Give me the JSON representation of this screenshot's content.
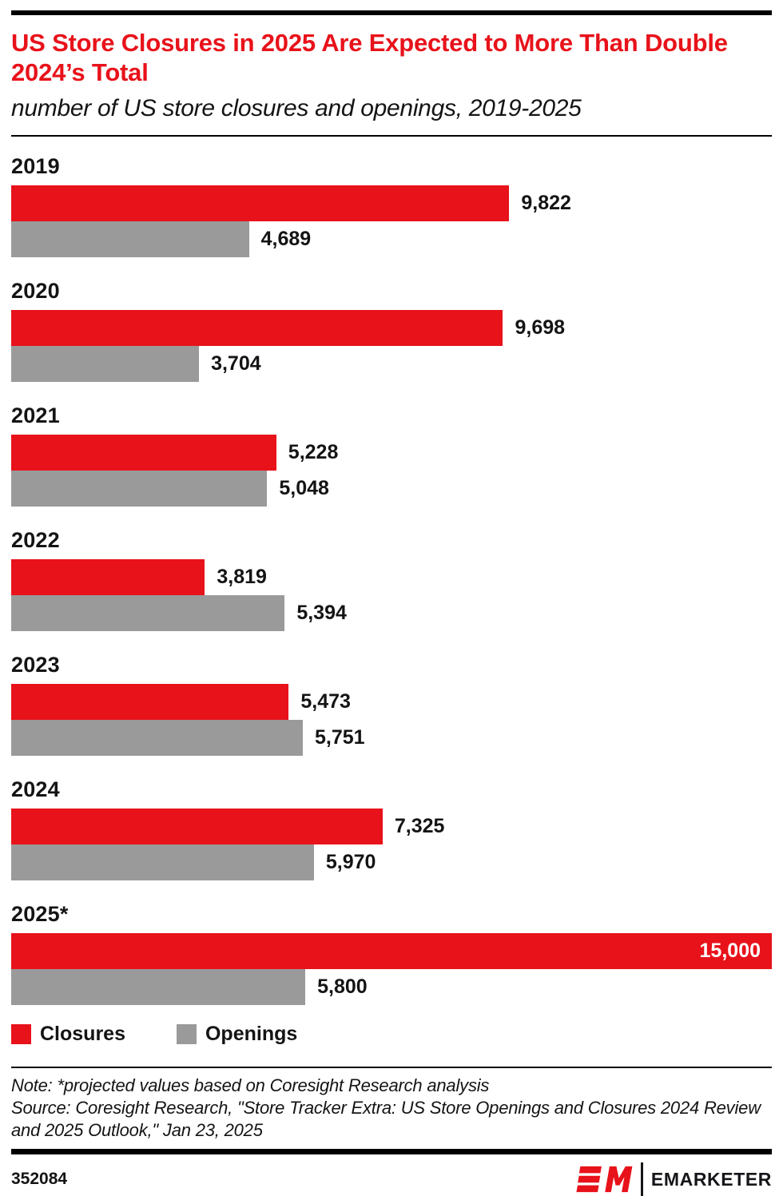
{
  "title": "US Store Closures in 2025 Are Expected to More Than Double 2024’s Total",
  "subtitle": "number of US store closures and openings, 2019-2025",
  "colors": {
    "closures": "#E8121A",
    "openings": "#9A9A9A",
    "title_accent": "#E8121A",
    "rule": "#000000",
    "inside_label_text": "#FFFFFF"
  },
  "chart_data": {
    "type": "bar",
    "orientation": "horizontal",
    "categories": [
      "2019",
      "2020",
      "2021",
      "2022",
      "2023",
      "2024",
      "2025*"
    ],
    "series": [
      {
        "name": "Closures",
        "color": "#E8121A",
        "values": [
          9822,
          9698,
          5228,
          3819,
          5473,
          7325,
          15000
        ]
      },
      {
        "name": "Openings",
        "color": "#9A9A9A",
        "values": [
          4689,
          3704,
          5048,
          5394,
          5751,
          5970,
          5800
        ]
      }
    ],
    "xlim": [
      0,
      15000
    ],
    "grid": false,
    "value_labels": "formatted with thousands commas, outside bar end; 15,000 shown white inside bar",
    "legend_position": "bottom-left"
  },
  "legend": [
    {
      "label": "Closures",
      "color": "#E8121A"
    },
    {
      "label": "Openings",
      "color": "#9A9A9A"
    }
  ],
  "note": "Note: *projected values based on Coresight Research analysis",
  "source": "Source: Coresight Research, \"Store Tracker Extra: US Store Openings and Closures 2024 Review and 2025 Outlook,\" Jan 23, 2025",
  "footer": {
    "chart_id": "352084",
    "brand": "EMARKETER",
    "logo": "em-logo"
  }
}
